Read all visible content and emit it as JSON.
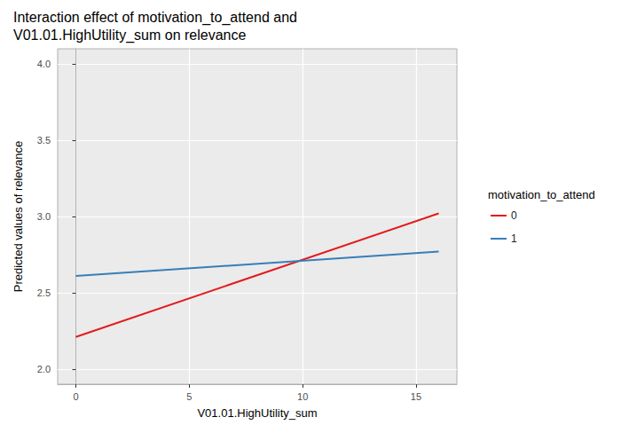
{
  "chart_data": {
    "type": "line",
    "title": "Interaction effect of motivation_to_attend and\nV01.01.HighUtility_sum on relevance",
    "x_label": "V01.01.HighUtility_sum",
    "y_label": "Predicted values of relevance",
    "legend_title": "motivation_to_attend",
    "legend": "right",
    "grid": true,
    "xlim": [
      -0.8,
      16.8
    ],
    "xticks": [
      0,
      5,
      10,
      15
    ],
    "ylim": [
      1.9,
      4.1
    ],
    "yticks": [
      {
        "value": 2,
        "label": "2.0"
      },
      {
        "value": 2.5,
        "label": "2.5"
      },
      {
        "value": 3,
        "label": "3.0"
      },
      {
        "value": 3.5,
        "label": "3.5"
      },
      {
        "value": 4,
        "label": "4.0"
      }
    ],
    "series": [
      {
        "name": "0",
        "color": "#e41a1c",
        "x": [
          0,
          16
        ],
        "values": [
          2.21,
          3.02
        ]
      },
      {
        "name": "1",
        "color": "#377eb8",
        "x": [
          0,
          16
        ],
        "values": [
          2.61,
          2.77
        ]
      }
    ]
  }
}
